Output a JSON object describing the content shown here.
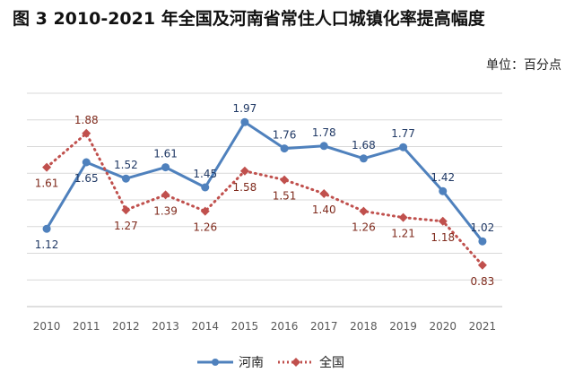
{
  "title": "图 3   2010-2021 年全国及河南省常住人口城镇化率提高幅度",
  "unit": "单位：百分点",
  "chart_data": {
    "type": "line",
    "title": "图 3   2010-2021 年全国及河南省常住人口城镇化率提高幅度",
    "ylabel": "",
    "xlabel": "",
    "ylim": [
      0.5,
      2.2
    ],
    "grid": true,
    "legend": "bottom",
    "categories": [
      "2010",
      "2011",
      "2012",
      "2013",
      "2014",
      "2015",
      "2016",
      "2017",
      "2018",
      "2019",
      "2020",
      "2021"
    ],
    "series": [
      {
        "name": "河南",
        "values": [
          1.12,
          1.65,
          1.52,
          1.61,
          1.45,
          1.97,
          1.76,
          1.78,
          1.68,
          1.77,
          1.42,
          1.02
        ],
        "labels": [
          "1.12",
          "1.65",
          "1.52",
          "1.61",
          "1.45",
          "1.97",
          "1.76",
          "1.78",
          "1.68",
          "1.77",
          "1.42",
          "1.02"
        ],
        "color": "#4F81BD",
        "style": "solid",
        "marker": "circle"
      },
      {
        "name": "全国",
        "values": [
          1.61,
          1.88,
          1.27,
          1.39,
          1.26,
          1.58,
          1.51,
          1.4,
          1.26,
          1.21,
          1.18,
          0.83
        ],
        "labels": [
          "1.61",
          "1.88",
          "1.27",
          "1.39",
          "1.26",
          "1.58",
          "1.51",
          "1.40",
          "1.26",
          "1.21",
          "1.18",
          "0.83"
        ],
        "color": "#C0504D",
        "style": "dotted",
        "marker": "diamond"
      }
    ]
  }
}
